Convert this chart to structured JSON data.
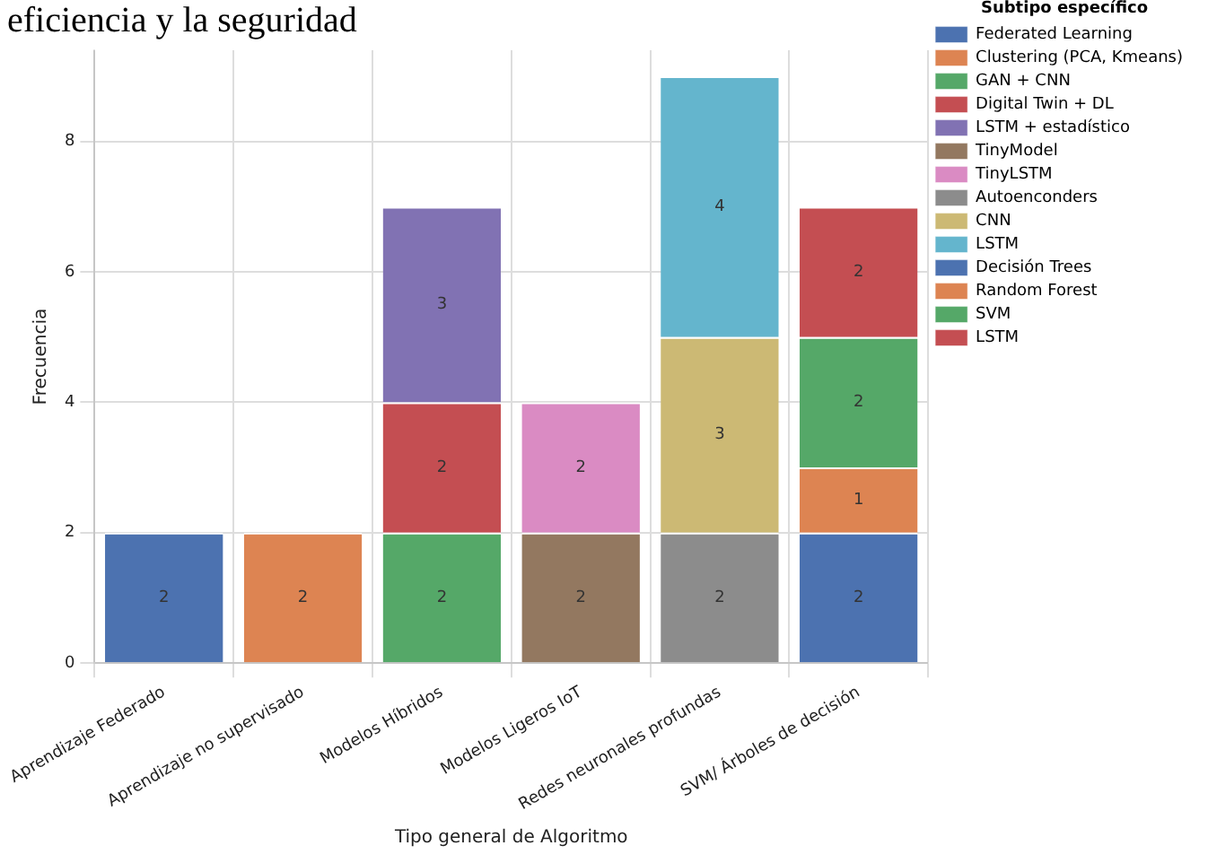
{
  "chart_data": {
    "type": "bar",
    "title": "eficiencia y la seguridad",
    "xlabel": "Tipo general de Algoritmo",
    "ylabel": "Frecuencia",
    "legend_title": "Subtipo específico",
    "categories": [
      "Aprendizaje Federado",
      "Aprendizaje no supervisado",
      "Modelos Híbridos",
      "Modelos Ligeros IoT",
      "Redes neuronales profundas",
      "SVM/ Árboles de decisión"
    ],
    "stacked": true,
    "ylim": [
      0,
      9.4
    ],
    "yticks": [
      0,
      2,
      4,
      6,
      8
    ],
    "grid": true,
    "legend": "right",
    "data_labels": true,
    "series": [
      {
        "name": "Federated Learning",
        "color": "#4c72b0",
        "values": [
          2,
          null,
          null,
          null,
          null,
          null
        ]
      },
      {
        "name": "Clustering (PCA, Kmeans)",
        "color": "#dd8452",
        "values": [
          null,
          2,
          null,
          null,
          null,
          null
        ]
      },
      {
        "name": "GAN + CNN",
        "color": "#55a868",
        "values": [
          null,
          null,
          2,
          null,
          null,
          null
        ]
      },
      {
        "name": "Digital Twin + DL",
        "color": "#c44e52",
        "values": [
          null,
          null,
          2,
          null,
          null,
          null
        ]
      },
      {
        "name": "LSTM + estadístico",
        "color": "#8172b3",
        "values": [
          null,
          null,
          3,
          null,
          null,
          null
        ]
      },
      {
        "name": "TinyModel",
        "color": "#937860",
        "values": [
          null,
          null,
          null,
          2,
          null,
          null
        ]
      },
      {
        "name": "TinyLSTM",
        "color": "#da8bc3",
        "values": [
          null,
          null,
          null,
          2,
          null,
          null
        ]
      },
      {
        "name": "Autoenconders",
        "color": "#8c8c8c",
        "values": [
          null,
          null,
          null,
          null,
          2,
          null
        ]
      },
      {
        "name": "CNN",
        "color": "#ccb974",
        "values": [
          null,
          null,
          null,
          null,
          3,
          null
        ]
      },
      {
        "name": "LSTM",
        "color": "#64b5cd",
        "values": [
          null,
          null,
          null,
          null,
          4,
          null
        ]
      },
      {
        "name": "Decisión Trees",
        "color": "#4c72b0",
        "values": [
          null,
          null,
          null,
          null,
          null,
          2
        ]
      },
      {
        "name": "Random Forest",
        "color": "#dd8452",
        "values": [
          null,
          null,
          null,
          null,
          null,
          1
        ]
      },
      {
        "name": "SVM",
        "color": "#55a868",
        "values": [
          null,
          null,
          null,
          null,
          null,
          2
        ]
      },
      {
        "name": "LSTM",
        "color": "#c44e52",
        "values": [
          null,
          null,
          null,
          null,
          null,
          2
        ]
      }
    ]
  }
}
